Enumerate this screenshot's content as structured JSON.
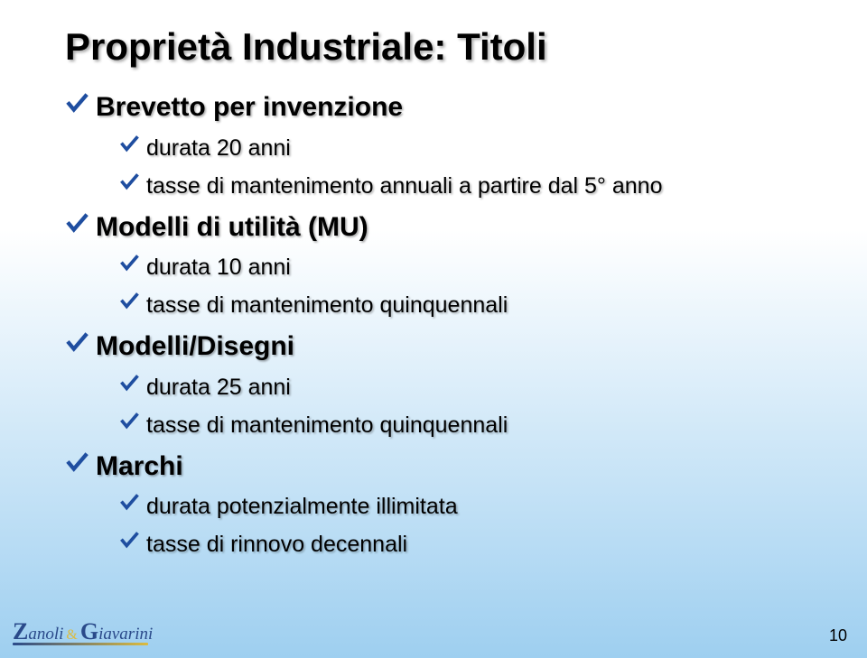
{
  "background": {
    "top_color": "#ffffff",
    "bottom_color": "#9ecff0"
  },
  "title": "Proprietà Industriale: Titoli",
  "check_color": "#1f4ea0",
  "text_color": "#000000",
  "sections": [
    {
      "label": "Brevetto per invenzione",
      "items": [
        {
          "text": "durata 20 anni"
        },
        {
          "text": "tasse di mantenimento annuali a partire dal 5° anno"
        }
      ]
    },
    {
      "label": "Modelli di utilità (MU)",
      "items": [
        {
          "text": "durata 10 anni"
        },
        {
          "text": "tasse di mantenimento quinquennali"
        }
      ]
    },
    {
      "label": "Modelli/Disegni",
      "items": [
        {
          "text": "durata 25 anni"
        },
        {
          "text": "tasse di mantenimento quinquennali"
        }
      ]
    },
    {
      "label": "Marchi",
      "items": [
        {
          "text": "durata potenzialmente illimitata"
        },
        {
          "text": "tasse di rinnovo decennali"
        }
      ]
    }
  ],
  "footer": {
    "brand_part1_cap": "Z",
    "brand_part1_rest": "anoli",
    "brand_amp": "&",
    "brand_part2_cap": "G",
    "brand_part2_rest": "iavarini",
    "page_number": "10"
  }
}
